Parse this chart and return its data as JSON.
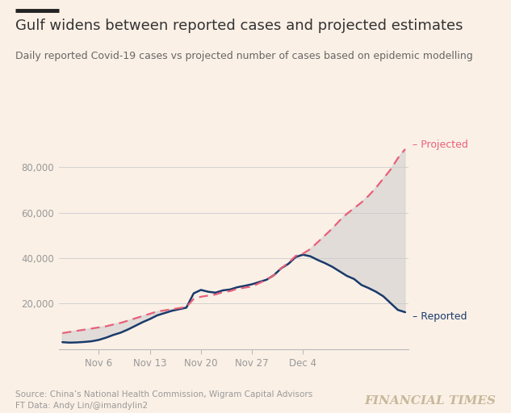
{
  "title": "Gulf widens between reported cases and projected estimates",
  "subtitle": "Daily reported Covid-19 cases vs projected number of cases based on epidemic modelling",
  "source_line1": "Source: China’s National Health Commission, Wigram Capital Advisors",
  "source_line2": "FT Data: Andy Lin/@imandylin2",
  "watermark": "FINANCIAL TIMES",
  "background_color": "#FAF0E6",
  "plot_bg_color": "#FAF0E6",
  "reported_color": "#1A3A6B",
  "projected_color": "#E8607A",
  "fill_color": "#CDCDCD",
  "fill_alpha": 0.55,
  "ylim": [
    0,
    90000
  ],
  "yticks": [
    20000,
    40000,
    60000,
    80000
  ],
  "ytick_labels": [
    "20,000",
    "40,000",
    "60,000",
    "80,000"
  ],
  "xtick_labels": [
    "Nov 6",
    "Nov 13",
    "Nov 20",
    "Nov 27",
    "Dec 4"
  ],
  "xtick_positions": [
    5,
    12,
    19,
    26,
    33
  ],
  "reported_y": [
    3000,
    2800,
    2900,
    3100,
    3400,
    4000,
    5000,
    6200,
    7200,
    8600,
    10200,
    11800,
    13200,
    14800,
    15800,
    16800,
    17500,
    18200,
    24500,
    26000,
    25200,
    24800,
    25800,
    26200,
    27200,
    27800,
    28500,
    29500,
    30500,
    32500,
    35500,
    37500,
    40500,
    41500,
    40800,
    39200,
    37800,
    36200,
    34200,
    32200,
    30800,
    28200,
    26800,
    25200,
    23200,
    20200,
    17200,
    16200
  ],
  "projected_y": [
    7000,
    7500,
    8000,
    8500,
    9000,
    9500,
    10000,
    10800,
    11500,
    12500,
    13500,
    14500,
    15500,
    16500,
    17000,
    17500,
    18000,
    18500,
    22000,
    23000,
    23500,
    24000,
    25000,
    25500,
    26500,
    27000,
    27500,
    29000,
    30500,
    32500,
    35500,
    38000,
    41000,
    42000,
    44000,
    47000,
    50000,
    53000,
    56500,
    59500,
    62000,
    64500,
    67500,
    71000,
    75000,
    79000,
    84000,
    88000
  ],
  "label_reported": "Reported",
  "label_projected": "Projected",
  "title_fontsize": 13,
  "subtitle_fontsize": 9,
  "source_fontsize": 7.5,
  "watermark_fontsize": 11,
  "axis_tick_fontsize": 8.5,
  "label_fontsize": 9,
  "top_bar_color": "#222222"
}
